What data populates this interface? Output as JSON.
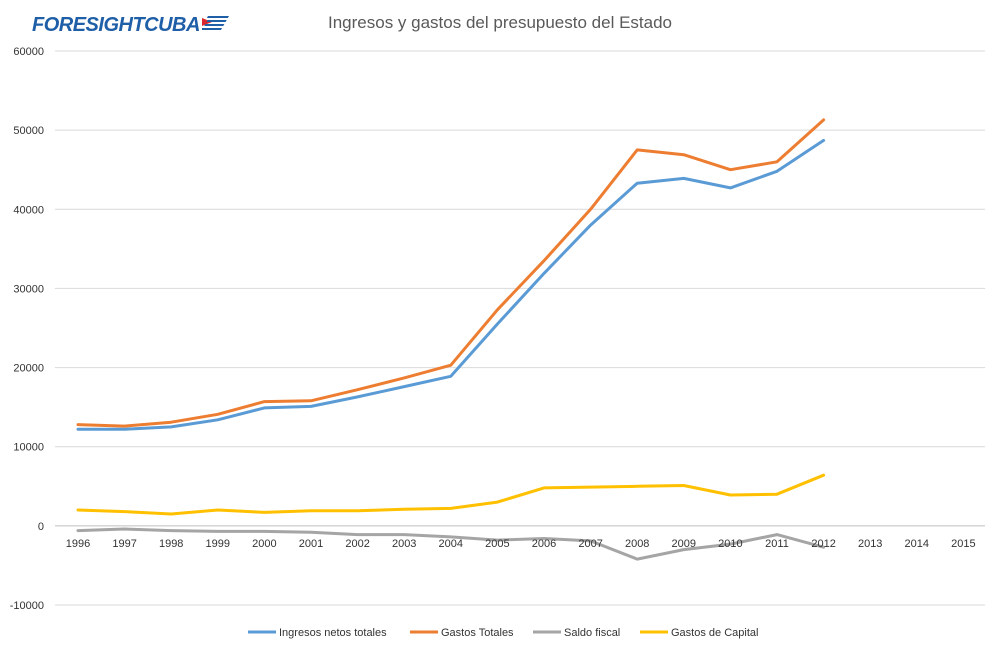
{
  "logo": {
    "text": "FORESIGHTCUBA"
  },
  "chart_data": {
    "type": "line",
    "title": "Ingresos y gastos del presupuesto del Estado",
    "x": [
      "1996",
      "1997",
      "1998",
      "1999",
      "2000",
      "2001",
      "2002",
      "2003",
      "2004",
      "2005",
      "2006",
      "2007",
      "2008",
      "2009",
      "2010",
      "2011",
      "2012",
      "2013",
      "2014",
      "2015"
    ],
    "ylim": [
      -10000,
      60000
    ],
    "yticks": [
      -10000,
      0,
      10000,
      20000,
      30000,
      40000,
      50000,
      60000
    ],
    "grid": true,
    "legend": "bottom",
    "series": [
      {
        "name": "Ingresos netos totales",
        "color": "#5b9bd5",
        "values": [
          12200,
          12200,
          12500,
          13400,
          14900,
          15100,
          16300,
          17600,
          18900,
          25500,
          31900,
          38000,
          43300,
          43900,
          42700,
          44800,
          48700,
          null,
          null,
          null
        ]
      },
      {
        "name": "Gastos Totales",
        "color": "#ed7d31",
        "values": [
          12800,
          12600,
          13100,
          14100,
          15700,
          15800,
          17200,
          18700,
          20300,
          27300,
          33500,
          40000,
          47500,
          46900,
          45000,
          46000,
          51300,
          null,
          null,
          null
        ]
      },
      {
        "name": "Saldo fiscal",
        "color": "#a5a5a5",
        "values": [
          -600,
          -400,
          -600,
          -700,
          -700,
          -800,
          -1100,
          -1100,
          -1400,
          -1800,
          -1600,
          -1900,
          -4200,
          -3000,
          -2300,
          -1100,
          -2700,
          null,
          null,
          null
        ]
      },
      {
        "name": "Gastos de Capital",
        "color": "#ffc000",
        "values": [
          2000,
          1800,
          1500,
          2000,
          1700,
          1900,
          1900,
          2100,
          2200,
          3000,
          4800,
          4900,
          5000,
          5100,
          3900,
          4000,
          6400,
          null,
          null,
          null
        ]
      }
    ]
  }
}
